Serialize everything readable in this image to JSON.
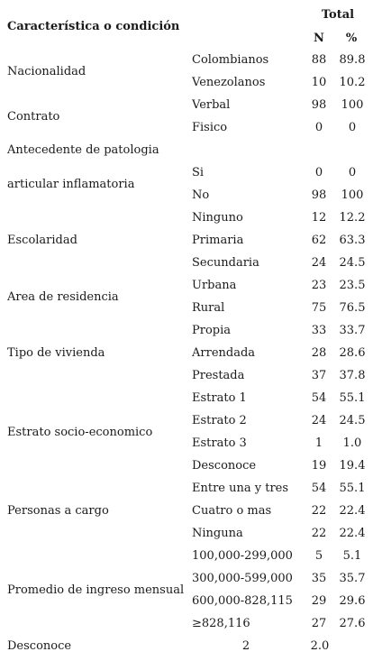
{
  "header": {
    "title": "Característica o condición",
    "total": "Total",
    "n": "N",
    "pct": "%"
  },
  "groups": [
    {
      "label": "Nacionalidad",
      "rows": [
        {
          "cat": "Colombianos",
          "n": "88",
          "pct": "89.8"
        },
        {
          "cat": "Venezolanos",
          "n": "10",
          "pct": "10.2"
        }
      ]
    },
    {
      "label": "Contrato",
      "rows": [
        {
          "cat": "Verbal",
          "n": "98",
          "pct": "100"
        },
        {
          "cat": "Fisico",
          "n": "0",
          "pct": "0"
        }
      ]
    },
    {
      "label": "Antecedente de patologia",
      "label2": "articular inflamatoria",
      "rows": [
        {
          "cat": "Si",
          "n": "0",
          "pct": "0"
        },
        {
          "cat": "No",
          "n": "98",
          "pct": "100"
        }
      ]
    },
    {
      "label": "Escolaridad",
      "rows": [
        {
          "cat": "Ninguno",
          "n": "12",
          "pct": "12.2"
        },
        {
          "cat": "Primaria",
          "n": "62",
          "pct": "63.3"
        },
        {
          "cat": "Secundaria",
          "n": "24",
          "pct": "24.5"
        }
      ]
    },
    {
      "label": "Area de residencia",
      "rows": [
        {
          "cat": "Urbana",
          "n": "23",
          "pct": "23.5"
        },
        {
          "cat": "Rural",
          "n": "75",
          "pct": "76.5"
        }
      ]
    },
    {
      "label": "Tipo de vivienda",
      "rows": [
        {
          "cat": "Propia",
          "n": "33",
          "pct": "33.7"
        },
        {
          "cat": "Arrendada",
          "n": "28",
          "pct": "28.6"
        },
        {
          "cat": "Prestada",
          "n": "37",
          "pct": "37.8"
        }
      ]
    },
    {
      "label": "Estrato socio-economico",
      "rows": [
        {
          "cat": "Estrato 1",
          "n": "54",
          "pct": "55.1"
        },
        {
          "cat": "Estrato 2",
          "n": "24",
          "pct": "24.5"
        },
        {
          "cat": "Estrato 3",
          "n": "1",
          "pct": "1.0"
        },
        {
          "cat": "Desconoce",
          "n": "19",
          "pct": "19.4"
        }
      ]
    },
    {
      "label": "Personas a cargo",
      "rows": [
        {
          "cat": "Entre una y tres",
          "n": "54",
          "pct": "55.1"
        },
        {
          "cat": "Cuatro o mas",
          "n": "22",
          "pct": "22.4"
        },
        {
          "cat": "Ninguna",
          "n": "22",
          "pct": "22.4"
        }
      ]
    },
    {
      "label": "Promedio de ingreso mensual",
      "rows": [
        {
          "cat": "100,000-299,000",
          "n": "5",
          "pct": "5.1"
        },
        {
          "cat": "300,000-599,000",
          "n": "35",
          "pct": "35.7"
        },
        {
          "cat": "600,000-828,115",
          "n": "29",
          "pct": "29.6"
        },
        {
          "cat": "≥828,116",
          "n": "27",
          "pct": "27.6"
        }
      ]
    }
  ],
  "footer": {
    "label": "Desconoce",
    "n": "2",
    "pct": "2.0"
  }
}
